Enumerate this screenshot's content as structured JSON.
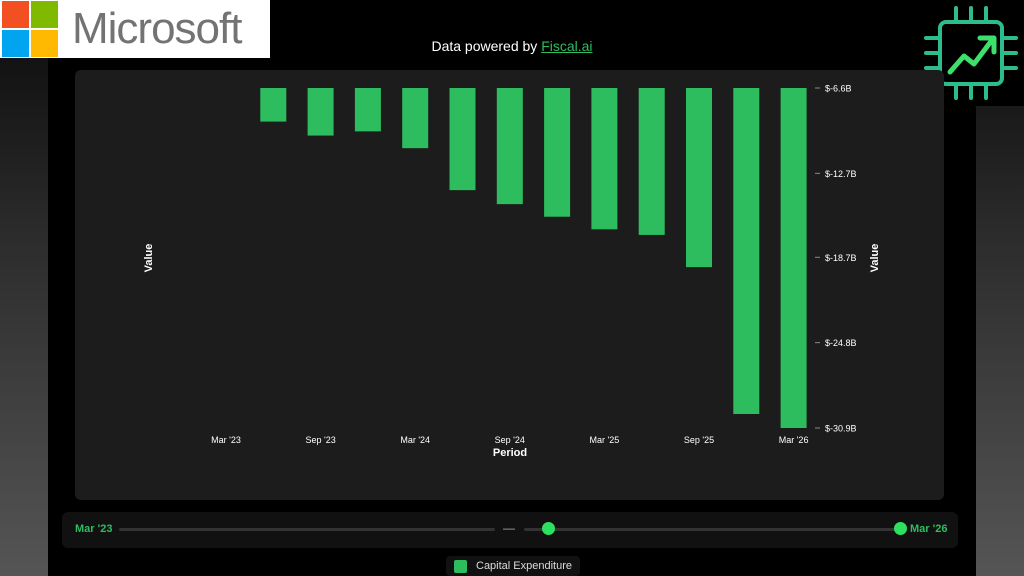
{
  "header": {
    "logo_text": "Microsoft",
    "powered_prefix": "Data powered by ",
    "powered_link": "Fiscal.ai"
  },
  "colors": {
    "accent": "#2dbd5f",
    "bar": "#2dbd5f",
    "panel": "#1c1c1c",
    "ms_red": "#f25022",
    "ms_green": "#7fba00",
    "ms_blue": "#00a4ef",
    "ms_yellow": "#ffb900"
  },
  "chart_data": {
    "type": "bar",
    "categories": [
      "Mar '23",
      "Jun '23",
      "Sep '23",
      "Dec '23",
      "Mar '24",
      "Jun '24",
      "Sep '24",
      "Dec '24",
      "Mar '25",
      "Jun '25",
      "Sep '25",
      "Dec '25",
      "Mar '26"
    ],
    "x_tick_labels": [
      "Mar '23",
      "Sep '23",
      "Mar '24",
      "Sep '24",
      "Mar '25",
      "Sep '25",
      "Mar '26"
    ],
    "values": [
      null,
      -9.0,
      -10.0,
      -9.7,
      -10.9,
      -13.9,
      -14.9,
      -15.8,
      -16.7,
      -17.1,
      -19.4,
      -29.9,
      -30.9
    ],
    "series": [
      {
        "name": "Capital Expenditure"
      }
    ],
    "y_tick_labels": [
      "$-6.6B",
      "$-12.7B",
      "$-18.7B",
      "$-24.8B",
      "$-30.9B"
    ],
    "y_tick_values": [
      -6.6,
      -12.7,
      -18.7,
      -24.8,
      -30.9
    ],
    "ylim": [
      -30.9,
      -6.6
    ],
    "xlabel": "Period",
    "ylabel": "Value",
    "ylabel_right": "Value",
    "grid": false,
    "legend_placement": "bottom"
  },
  "range_slider": {
    "start_label": "Mar '23",
    "end_label": "Mar '26",
    "separator": "—",
    "start_fraction": 0.55,
    "end_fraction": 1.0
  }
}
